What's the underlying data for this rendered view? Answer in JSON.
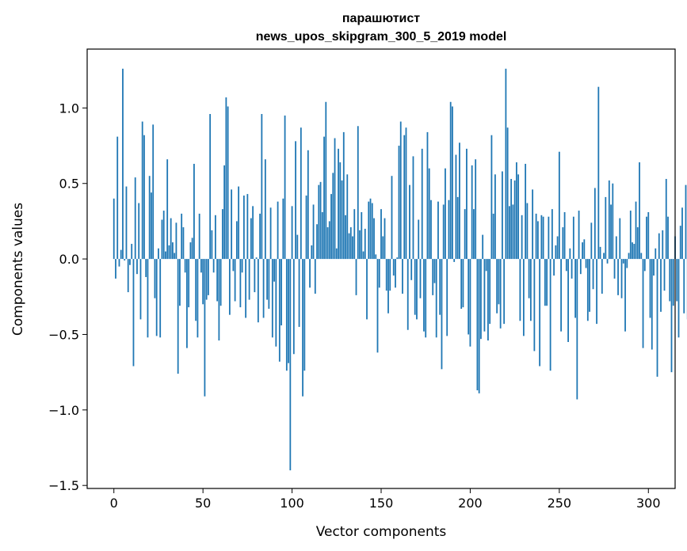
{
  "chart_data": {
    "type": "bar",
    "title_lines": [
      "парашютист",
      "news_upos_skipgram_300_5_2019 model"
    ],
    "xlabel": "Vector components",
    "ylabel": "Components values",
    "xlim": [
      -15,
      315
    ],
    "ylim": [
      -1.52,
      1.39
    ],
    "x_ticks": [
      0,
      50,
      100,
      150,
      200,
      250,
      300
    ],
    "y_ticks": [
      1.0,
      0.5,
      0.0,
      -0.5,
      -1.0,
      -1.5
    ],
    "y_tick_labels": [
      "1.0",
      "0.5",
      "0.0",
      "−0.5",
      "−1.0",
      "−1.5"
    ],
    "grid": false,
    "bar_color": "#1f77b4",
    "x_start": 0,
    "values": [
      0.4,
      -0.13,
      0.81,
      -0.05,
      0.06,
      1.26,
      -0.01,
      0.48,
      -0.22,
      -0.04,
      0.1,
      -0.71,
      0.54,
      -0.1,
      0.37,
      -0.4,
      0.91,
      0.82,
      -0.12,
      -0.52,
      0.55,
      0.44,
      0.89,
      -0.26,
      -0.51,
      0.07,
      -0.52,
      0.26,
      0.32,
      0.05,
      0.66,
      0.09,
      0.27,
      0.11,
      0.04,
      0.24,
      -0.76,
      -0.31,
      0.3,
      0.21,
      -0.09,
      -0.59,
      -0.32,
      0.11,
      0.14,
      0.63,
      -0.41,
      -0.52,
      0.3,
      -0.09,
      -0.3,
      -0.91,
      -0.27,
      -0.24,
      0.96,
      0.19,
      -0.09,
      0.29,
      -0.28,
      -0.54,
      -0.31,
      0.33,
      0.62,
      1.07,
      1.01,
      -0.37,
      0.46,
      -0.08,
      -0.28,
      0.25,
      0.48,
      -0.32,
      -0.09,
      0.42,
      -0.39,
      0.43,
      -0.27,
      0.27,
      0.35,
      -0.22,
      0.01,
      -0.42,
      0.3,
      0.96,
      -0.39,
      0.66,
      -0.27,
      -0.33,
      0.34,
      -0.52,
      -0.15,
      -0.58,
      0.38,
      -0.68,
      -0.44,
      0.4,
      0.95,
      -0.74,
      -0.69,
      -1.4,
      0.35,
      -0.63,
      0.78,
      0.16,
      -0.45,
      0.87,
      -0.91,
      -0.74,
      0.42,
      0.72,
      -0.19,
      0.09,
      0.36,
      -0.23,
      0.23,
      0.49,
      0.51,
      0.31,
      0.81,
      1.04,
      0.21,
      0.25,
      0.43,
      0.57,
      0.8,
      0.07,
      0.73,
      0.64,
      0.52,
      0.84,
      0.29,
      0.56,
      0.17,
      0.21,
      0.15,
      0.33,
      -0.24,
      0.88,
      0.19,
      0.31,
      0.05,
      0.2,
      -0.4,
      0.38,
      0.4,
      0.37,
      0.27,
      0.03,
      -0.62,
      -0.19,
      0.33,
      0.15,
      0.27,
      -0.21,
      -0.36,
      -0.21,
      0.55,
      -0.11,
      -0.19,
      0.01,
      0.75,
      0.91,
      -0.23,
      0.82,
      0.87,
      -0.47,
      0.49,
      -0.14,
      0.68,
      -0.37,
      -0.4,
      0.26,
      -0.26,
      0.73,
      -0.48,
      -0.52,
      0.84,
      0.6,
      0.39,
      -0.24,
      -0.16,
      -0.52,
      0.38,
      -0.37,
      -0.73,
      0.36,
      0.6,
      -0.51,
      0.39,
      1.04,
      1.01,
      -0.02,
      0.69,
      0.41,
      0.77,
      -0.33,
      -0.32,
      0.33,
      0.73,
      -0.5,
      -0.58,
      0.62,
      0.33,
      0.66,
      -0.87,
      -0.89,
      -0.53,
      0.16,
      -0.48,
      -0.08,
      -0.54,
      -0.43,
      0.82,
      0.3,
      0.56,
      -0.36,
      -0.3,
      -0.46,
      0.58,
      -0.43,
      1.26,
      0.87,
      0.35,
      0.53,
      0.36,
      0.52,
      0.64,
      0.56,
      -0.41,
      0.29,
      -0.51,
      0.63,
      0.37,
      -0.26,
      -0.41,
      0.46,
      -0.61,
      0.3,
      0.25,
      -0.71,
      0.29,
      0.28,
      -0.31,
      -0.31,
      0.28,
      -0.74,
      0.33,
      -0.11,
      0.09,
      0.15,
      0.71,
      -0.48,
      0.21,
      0.31,
      -0.08,
      -0.55,
      0.07,
      -0.13,
      0.28,
      -0.39,
      -0.93,
      0.32,
      -0.1,
      0.11,
      0.13,
      -0.06,
      -0.41,
      -0.35,
      0.24,
      -0.2,
      0.47,
      -0.43,
      1.14,
      0.08,
      -0.23,
      0.04,
      0.41,
      -0.03,
      0.52,
      0.36,
      0.5,
      -0.13,
      0.15,
      -0.24,
      0.27,
      -0.26,
      -0.03,
      -0.48,
      -0.06,
      0.04,
      0.32,
      0.11,
      0.1,
      0.38,
      0.21,
      0.64,
      0.04,
      -0.59,
      -0.08,
      0.28,
      0.31,
      -0.39,
      -0.6,
      -0.11,
      0.07,
      -0.78,
      0.17,
      -0.35,
      0.19,
      -0.21,
      0.53,
      0.28,
      -0.28,
      -0.75,
      -0.31,
      0.15,
      -0.28,
      -0.52,
      0.22,
      0.34,
      -0.36,
      0.49,
      -0.4
    ]
  }
}
